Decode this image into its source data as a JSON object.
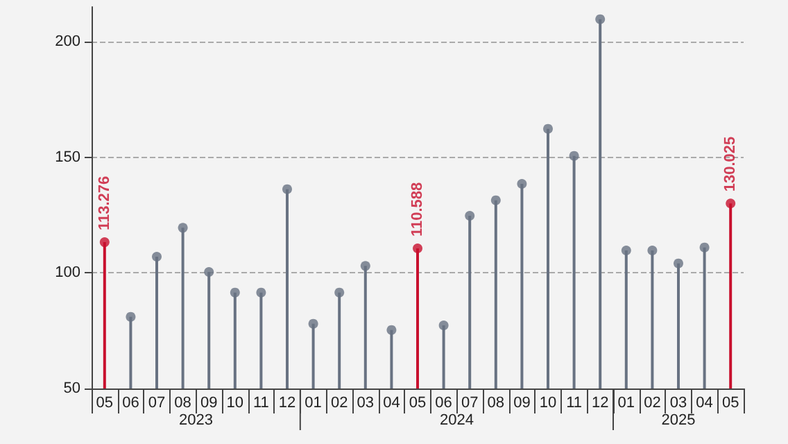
{
  "chart_data": {
    "type": "lollipop",
    "categories": [
      "05",
      "06",
      "07",
      "08",
      "09",
      "10",
      "11",
      "12",
      "01",
      "02",
      "03",
      "04",
      "05",
      "06",
      "07",
      "08",
      "09",
      "10",
      "11",
      "12",
      "01",
      "02",
      "03",
      "04",
      "05"
    ],
    "values": [
      113.276,
      81,
      107,
      119.5,
      100.4,
      91.5,
      91.5,
      136.2,
      78,
      91.5,
      103,
      75.3,
      110.588,
      77.3,
      124.7,
      131.4,
      138.5,
      162.3,
      150.6,
      209.7,
      109.7,
      109.7,
      104.1,
      111,
      130.025
    ],
    "colors": [
      "#c8102e",
      "#687282",
      "#687282",
      "#687282",
      "#687282",
      "#687282",
      "#687282",
      "#687282",
      "#687282",
      "#687282",
      "#687282",
      "#687282",
      "#c8102e",
      "#687282",
      "#687282",
      "#687282",
      "#687282",
      "#687282",
      "#687282",
      "#687282",
      "#687282",
      "#687282",
      "#687282",
      "#687282",
      "#c8102e"
    ],
    "value_labels": [
      "113.276",
      null,
      null,
      null,
      null,
      null,
      null,
      null,
      null,
      null,
      null,
      null,
      "110.588",
      null,
      null,
      null,
      null,
      null,
      null,
      null,
      null,
      null,
      null,
      null,
      "130.025"
    ],
    "annotations": [
      "2023",
      "2024",
      "2025"
    ],
    "ylim": [
      50,
      215
    ],
    "yticks": [
      50,
      100,
      150,
      200
    ],
    "grid": "y",
    "marker": "circle"
  }
}
